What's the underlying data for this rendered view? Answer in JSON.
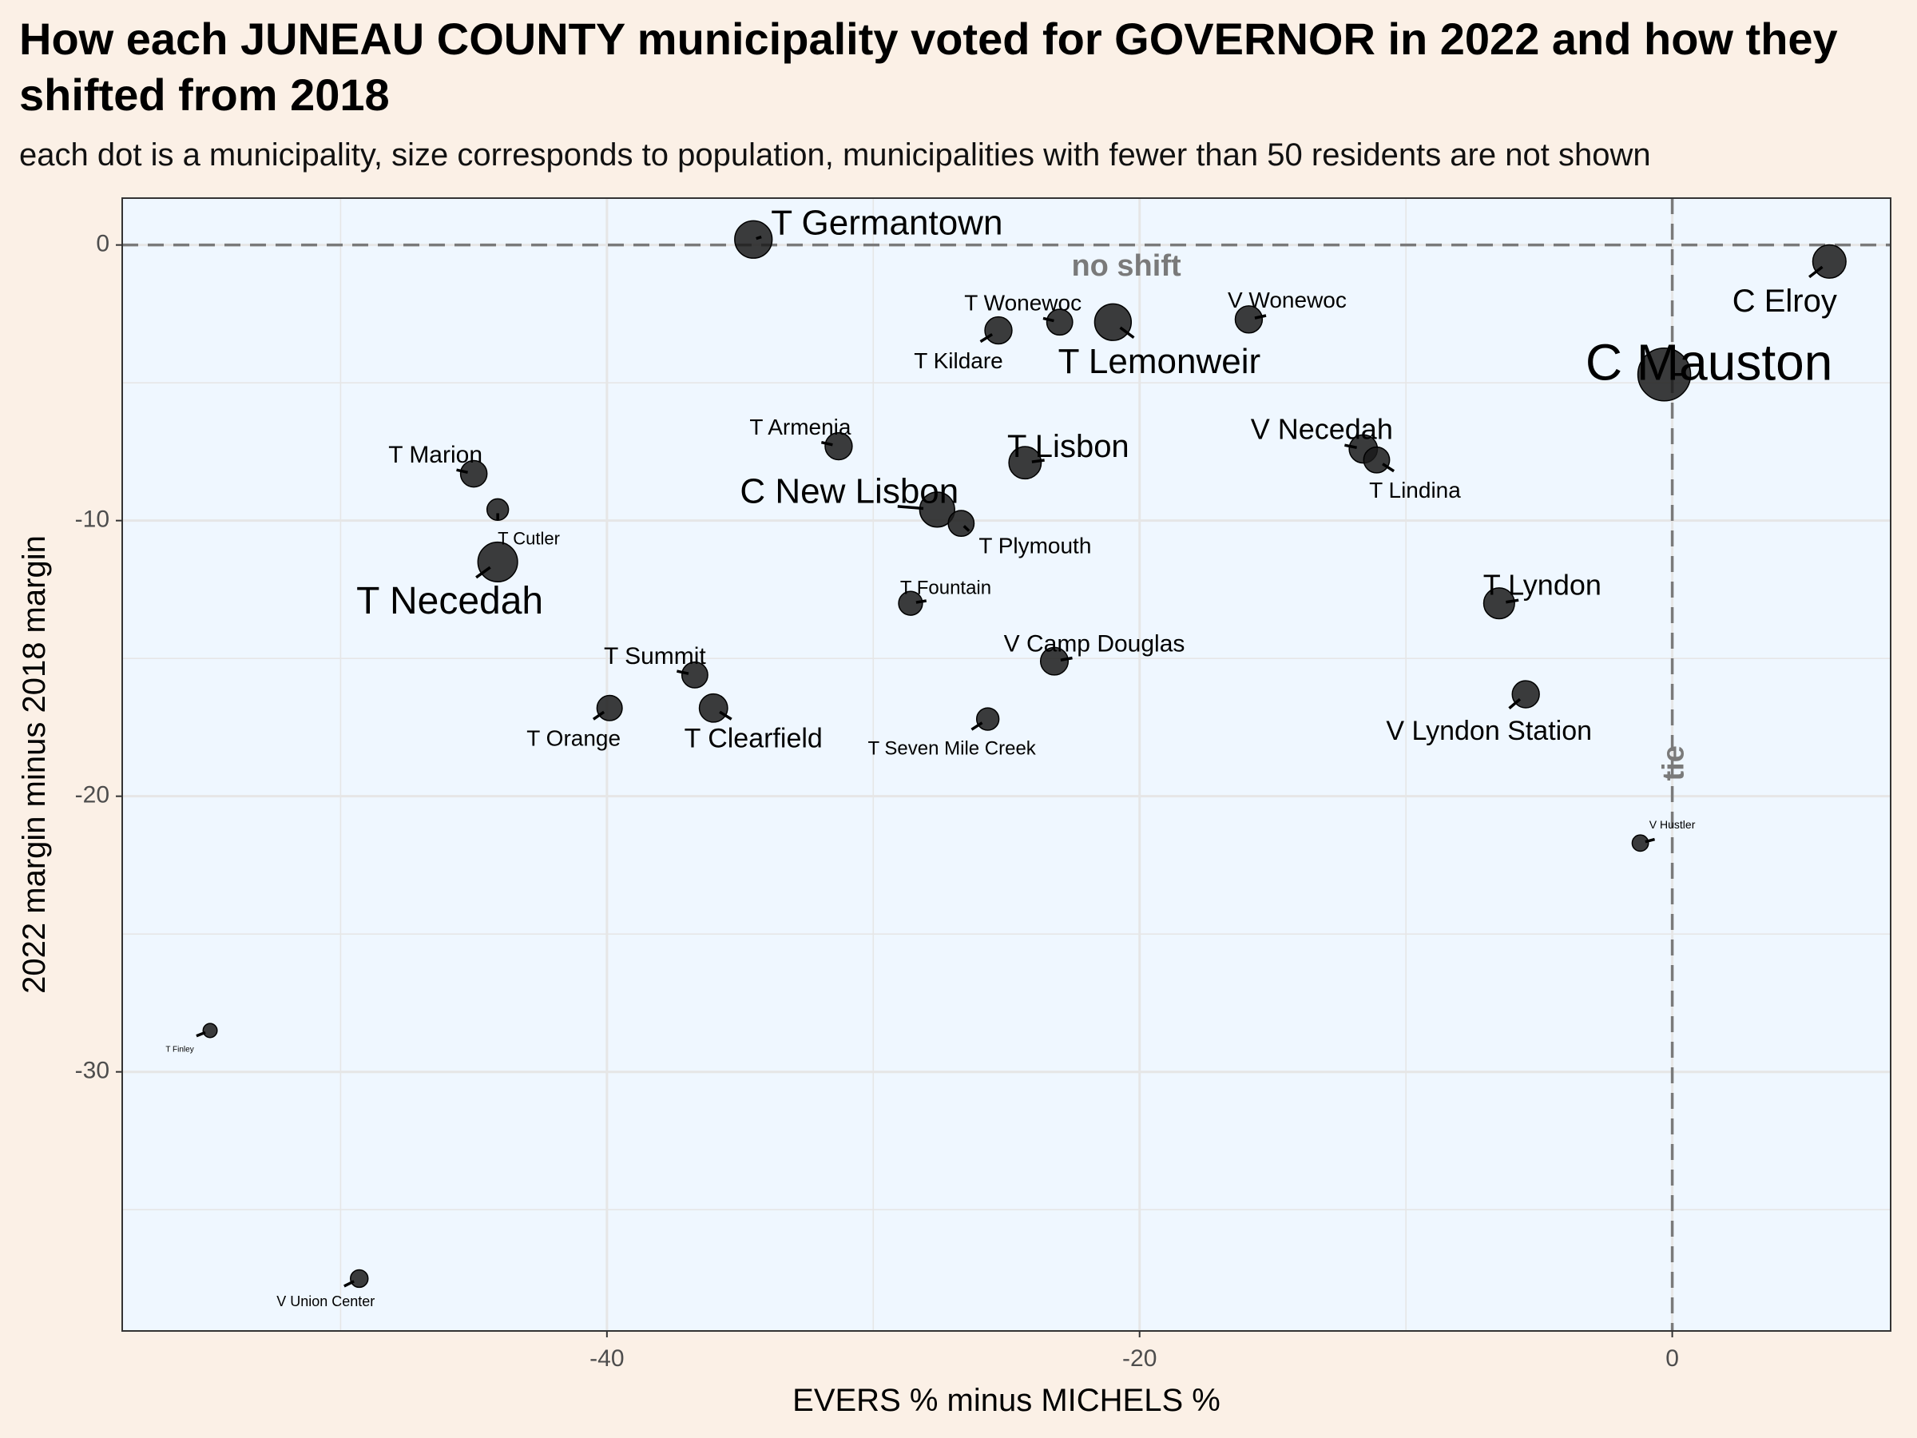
{
  "title": "How each JUNEAU COUNTY municipality voted for GOVERNOR in 2022 and how they shifted from 2018",
  "subtitle": "each dot is a municipality, size corresponds to population, municipalities with fewer than 50 residents are not shown",
  "chart_data": {
    "type": "scatter",
    "xlabel": "EVERS % minus MICHELS %",
    "ylabel": "2022 margin minus 2018 margin",
    "xlim": [
      -58.2,
      8.2
    ],
    "ylim": [
      -39.4,
      1.7
    ],
    "x_ticks": [
      -40,
      -20,
      0
    ],
    "y_ticks": [
      0,
      -10,
      -20,
      -30
    ],
    "grid": true,
    "legend": "none",
    "colors": {
      "panel_background": "#eff7ff",
      "page_background": "#fbf0e6",
      "point_fill": "#1a1a1a",
      "grid": "#e6e6e6",
      "reference_line": "#7a7a7a"
    },
    "reference_lines": [
      {
        "orientation": "horizontal",
        "value": 0,
        "label": "no shift"
      },
      {
        "orientation": "vertical",
        "value": 0,
        "label": "tie"
      }
    ],
    "points": [
      {
        "label": "T Germantown",
        "x": -34.5,
        "y": 0.2,
        "population": 1900
      },
      {
        "label": "T Wonewoc",
        "x": -23.0,
        "y": -2.8,
        "population": 700
      },
      {
        "label": "T Kildare",
        "x": -25.3,
        "y": -3.1,
        "population": 800
      },
      {
        "label": "T Lemonweir",
        "x": -21.0,
        "y": -2.8,
        "population": 1800
      },
      {
        "label": "V Wonewoc",
        "x": -15.9,
        "y": -2.7,
        "population": 800
      },
      {
        "label": "C Elroy",
        "x": 5.9,
        "y": -0.6,
        "population": 1400
      },
      {
        "label": "C Mauston",
        "x": -0.3,
        "y": -4.7,
        "population": 4400
      },
      {
        "label": "T Armenia",
        "x": -31.3,
        "y": -7.3,
        "population": 800
      },
      {
        "label": "T Lisbon",
        "x": -24.3,
        "y": -7.9,
        "population": 1300
      },
      {
        "label": "V Necedah",
        "x": -11.6,
        "y": -7.4,
        "population": 900
      },
      {
        "label": "T Lindina",
        "x": -11.1,
        "y": -7.8,
        "population": 700
      },
      {
        "label": "T Marion",
        "x": -45.0,
        "y": -8.3,
        "population": 750
      },
      {
        "label": "T Cutler",
        "x": -44.1,
        "y": -9.6,
        "population": 400
      },
      {
        "label": "C New Lisbon",
        "x": -27.6,
        "y": -9.6,
        "population": 1600
      },
      {
        "label": "T Plymouth",
        "x": -26.7,
        "y": -10.1,
        "population": 700
      },
      {
        "label": "T Necedah",
        "x": -44.1,
        "y": -11.5,
        "population": 2200
      },
      {
        "label": "T Fountain",
        "x": -28.6,
        "y": -13.0,
        "population": 550
      },
      {
        "label": "T Lyndon",
        "x": -6.5,
        "y": -13.0,
        "population": 1150
      },
      {
        "label": "V Camp Douglas",
        "x": -23.2,
        "y": -15.1,
        "population": 850
      },
      {
        "label": "T Summit",
        "x": -36.7,
        "y": -15.6,
        "population": 700
      },
      {
        "label": "T Orange",
        "x": -39.9,
        "y": -16.8,
        "population": 650
      },
      {
        "label": "T Clearfield",
        "x": -36.0,
        "y": -16.8,
        "population": 900
      },
      {
        "label": "T Seven Mile Creek",
        "x": -25.7,
        "y": -17.2,
        "population": 450
      },
      {
        "label": "V Lyndon Station",
        "x": -5.5,
        "y": -16.3,
        "population": 800
      },
      {
        "label": "V Hustler",
        "x": -1.2,
        "y": -21.7,
        "population": 150
      },
      {
        "label": "T Finley",
        "x": -54.9,
        "y": -28.5,
        "population": 80
      },
      {
        "label": "V Union Center",
        "x": -49.3,
        "y": -37.5,
        "population": 200
      }
    ]
  }
}
